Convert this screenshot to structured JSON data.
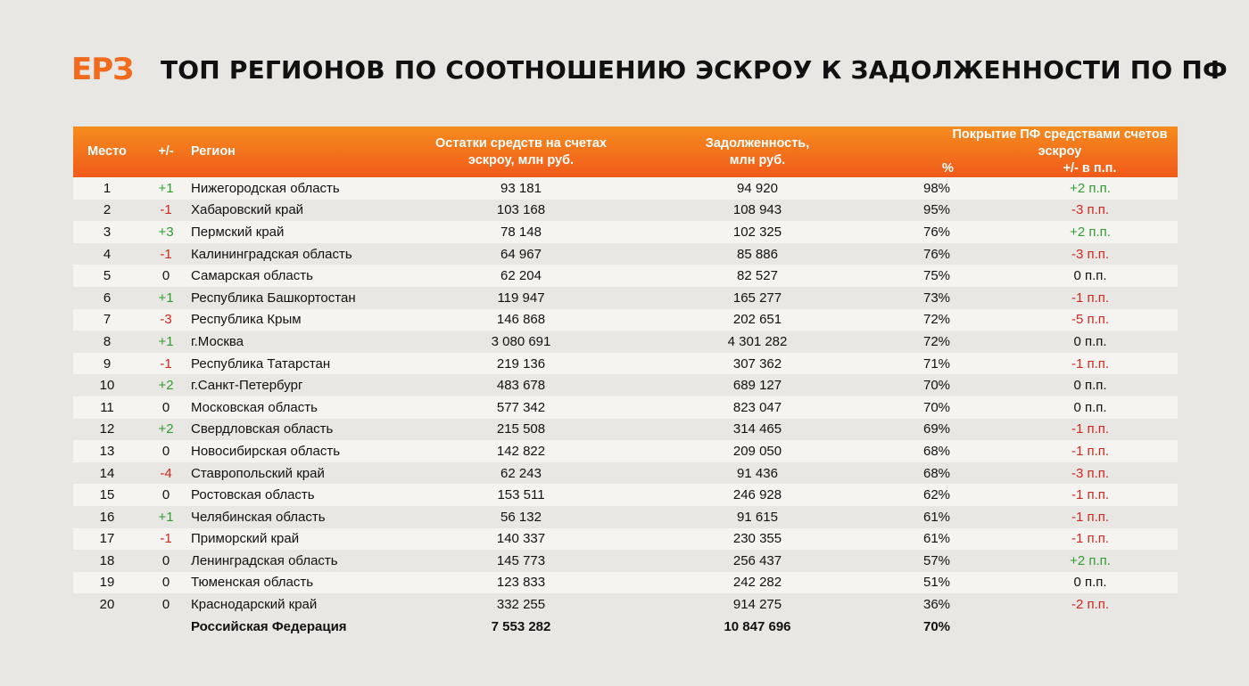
{
  "logo": "ЕРЗ",
  "title": "ТОП РЕГИОНОВ ПО СООТНОШЕНИЮ ЭСКРОУ К ЗАДОЛЖЕННОСТИ ПО ПФ",
  "header": {
    "place": "Место",
    "change": "+/-",
    "region": "Регион",
    "escrow_line1": "Остатки средств на счетах",
    "escrow_line2": "эскроу, млн руб.",
    "debt_line1": "Задолженность,",
    "debt_line2": "млн руб.",
    "coverage_group": "Покрытие ПФ средствами счетов эскроу",
    "coverage_pct": "%",
    "coverage_change": "+/- в п.п."
  },
  "rows": [
    {
      "place": "1",
      "change": "+1",
      "region": "Нижегородская область",
      "escrow": "93 181",
      "debt": "94 920",
      "pct": "98%",
      "pp": "+2 п.п."
    },
    {
      "place": "2",
      "change": "-1",
      "region": "Хабаровский край",
      "escrow": "103 168",
      "debt": "108 943",
      "pct": "95%",
      "pp": "-3 п.п."
    },
    {
      "place": "3",
      "change": "+3",
      "region": "Пермский край",
      "escrow": "78 148",
      "debt": "102 325",
      "pct": "76%",
      "pp": "+2 п.п."
    },
    {
      "place": "4",
      "change": "-1",
      "region": "Калининградская область",
      "escrow": "64 967",
      "debt": "85 886",
      "pct": "76%",
      "pp": "-3 п.п."
    },
    {
      "place": "5",
      "change": "0",
      "region": "Самарская область",
      "escrow": "62 204",
      "debt": "82 527",
      "pct": "75%",
      "pp": "0 п.п."
    },
    {
      "place": "6",
      "change": "+1",
      "region": "Республика Башкортостан",
      "escrow": "119 947",
      "debt": "165 277",
      "pct": "73%",
      "pp": "-1 п.п."
    },
    {
      "place": "7",
      "change": "-3",
      "region": "Республика Крым",
      "escrow": "146 868",
      "debt": "202 651",
      "pct": "72%",
      "pp": "-5 п.п."
    },
    {
      "place": "8",
      "change": "+1",
      "region": "г.Москва",
      "escrow": "3 080 691",
      "debt": "4 301 282",
      "pct": "72%",
      "pp": "0 п.п."
    },
    {
      "place": "9",
      "change": "-1",
      "region": "Республика Татарстан",
      "escrow": "219 136",
      "debt": "307 362",
      "pct": "71%",
      "pp": "-1 п.п."
    },
    {
      "place": "10",
      "change": "+2",
      "region": "г.Санкт-Петербург",
      "escrow": "483 678",
      "debt": "689 127",
      "pct": "70%",
      "pp": "0 п.п."
    },
    {
      "place": "11",
      "change": "0",
      "region": "Московская область",
      "escrow": "577 342",
      "debt": "823 047",
      "pct": "70%",
      "pp": "0 п.п."
    },
    {
      "place": "12",
      "change": "+2",
      "region": "Свердловская область",
      "escrow": "215 508",
      "debt": "314 465",
      "pct": "69%",
      "pp": "-1 п.п."
    },
    {
      "place": "13",
      "change": "0",
      "region": "Новосибирская область",
      "escrow": "142 822",
      "debt": "209 050",
      "pct": "68%",
      "pp": "-1 п.п."
    },
    {
      "place": "14",
      "change": "-4",
      "region": "Ставропольский край",
      "escrow": "62 243",
      "debt": "91 436",
      "pct": "68%",
      "pp": "-3 п.п."
    },
    {
      "place": "15",
      "change": "0",
      "region": "Ростовская область",
      "escrow": "153 511",
      "debt": "246 928",
      "pct": "62%",
      "pp": "-1 п.п."
    },
    {
      "place": "16",
      "change": "+1",
      "region": "Челябинская область",
      "escrow": "56 132",
      "debt": "91 615",
      "pct": "61%",
      "pp": "-1 п.п."
    },
    {
      "place": "17",
      "change": "-1",
      "region": "Приморский край",
      "escrow": "140 337",
      "debt": "230 355",
      "pct": "61%",
      "pp": "-1 п.п."
    },
    {
      "place": "18",
      "change": "0",
      "region": "Ленинградская область",
      "escrow": "145 773",
      "debt": "256 437",
      "pct": "57%",
      "pp": "+2 п.п."
    },
    {
      "place": "19",
      "change": "0",
      "region": "Тюменская область",
      "escrow": "123 833",
      "debt": "242 282",
      "pct": "51%",
      "pp": "0 п.п."
    },
    {
      "place": "20",
      "change": "0",
      "region": "Краснодарский край",
      "escrow": "332 255",
      "debt": "914 275",
      "pct": "36%",
      "pp": "-2 п.п."
    }
  ],
  "total": {
    "region": "Российская Федерация",
    "escrow": "7 553 282",
    "debt": "10 847 696",
    "pct": "70%"
  },
  "colors": {
    "accent": "#f26a1b",
    "positive": "#2f9e2f",
    "negative": "#d0281c",
    "background": "#e8e7e3"
  }
}
